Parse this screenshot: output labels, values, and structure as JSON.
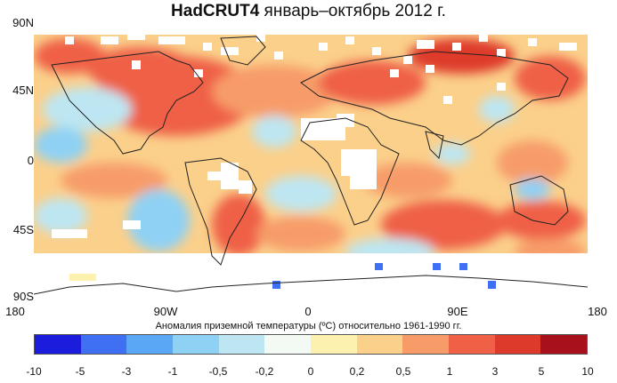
{
  "title": {
    "bold": "HadCRUT4",
    "rest": " январь–октябрь 2012 г."
  },
  "lat_labels": [
    "90N",
    "45N",
    "0",
    "45S",
    "90S"
  ],
  "lon_labels": [
    "180",
    "90W",
    "0",
    "90E",
    "180"
  ],
  "colorbar": {
    "title": "Аномалия приземной температуры (ºC) относительно 1961-1990 гг.",
    "colors": [
      "#1c1cdc",
      "#3f6ff2",
      "#5aa7f5",
      "#8fd1f4",
      "#bde6f2",
      "#f3faf3",
      "#fdf1b0",
      "#fbd08b",
      "#f79c69",
      "#ef6046",
      "#de3a2c",
      "#a8101c"
    ],
    "ticks": [
      "-10",
      "-5",
      "-3",
      "-1",
      "-0,5",
      "-0,2",
      "0",
      "0,2",
      "0,5",
      "1",
      "3",
      "5",
      "10"
    ]
  }
}
